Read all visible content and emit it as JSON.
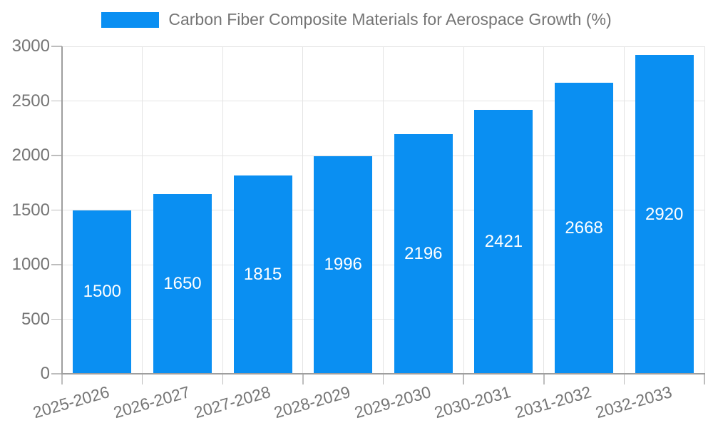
{
  "chart_data": {
    "type": "bar",
    "title": "Carbon Fiber Composite Materials for Aerospace Growth (%)",
    "categories": [
      "2025-2026",
      "2026-2027",
      "2027-2028",
      "2028-2029",
      "2029-2030",
      "2030-2031",
      "2031-2032",
      "2032-2033"
    ],
    "values": [
      1500,
      1650,
      1815,
      1996,
      2196,
      2421,
      2668,
      2920
    ],
    "yticks": [
      0,
      500,
      1000,
      1500,
      2000,
      2500,
      3000
    ],
    "ylim": [
      0,
      3000
    ],
    "xlabel": "",
    "ylabel": "",
    "grid": true,
    "legend_position": "top",
    "value_labels": "inside-center"
  },
  "legend": {
    "label": "Carbon Fiber Composite Materials for Aerospace Growth (%)"
  },
  "colors": {
    "bar": "#0A8FF2",
    "axis_line": "#9E9E9E",
    "gridline": "#E4E4E4",
    "tick": "#BDBDBD",
    "label_text": "#757575",
    "value_text": "#FFFFFF",
    "background": "#FFFFFF"
  }
}
